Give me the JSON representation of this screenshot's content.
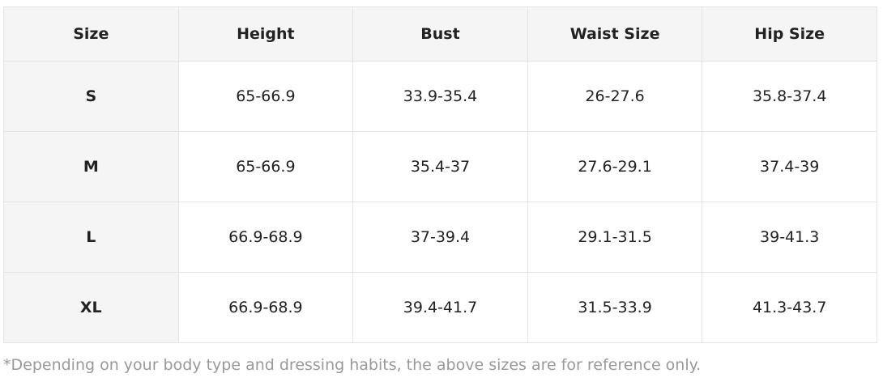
{
  "table": {
    "header": [
      "Size",
      "Height",
      "Bust",
      "Waist Size",
      "Hip Size"
    ],
    "rows": [
      [
        "S",
        "65-66.9",
        "33.9-35.4",
        "26-27.6",
        "35.8-37.4"
      ],
      [
        "M",
        "65-66.9",
        "35.4-37",
        "27.6-29.1",
        "37.4-39"
      ],
      [
        "L",
        "66.9-68.9",
        "37-39.4",
        "29.1-31.5",
        "39-41.3"
      ],
      [
        "XL",
        "66.9-68.9",
        "39.4-41.7",
        "31.5-33.9",
        "41.3-43.7"
      ]
    ]
  },
  "note": "*Depending on your body type and dressing habits, the above sizes are for reference only."
}
